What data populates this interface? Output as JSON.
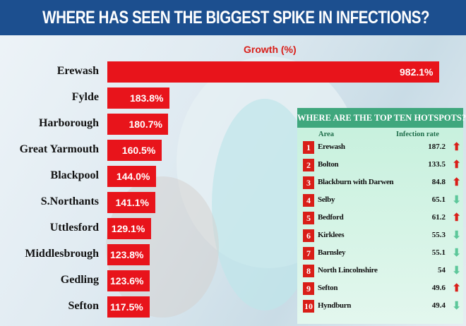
{
  "title": "WHERE HAS SEEN THE BIGGEST SPIKE IN INFECTIONS?",
  "chart_data": {
    "type": "bar",
    "orientation": "horizontal",
    "title": "Growth (%)",
    "categories": [
      "Erewash",
      "Fylde",
      "Harborough",
      "Great Yarmouth",
      "Blackpool",
      "S.Northants",
      "Uttlesford",
      "Middlesbrough",
      "Gedling",
      "Sefton"
    ],
    "values": [
      982.1,
      183.8,
      180.7,
      160.5,
      144.0,
      141.1,
      129.1,
      123.8,
      123.6,
      117.5
    ],
    "labels": [
      "982.1%",
      "183.8%",
      "180.7%",
      "160.5%",
      "144.0%",
      "141.1%",
      "129.1%",
      "123.8%",
      "123.6%",
      "117.5%"
    ],
    "bar_color": "#e8141b"
  },
  "hotspots": {
    "title": "WHERE ARE THE TOP TEN HOTSPOTS?",
    "col_area": "Area",
    "col_rate": "Infection rate",
    "up_color": "#d91e18",
    "down_color": "#5cc79a",
    "rows": [
      {
        "rank": "1",
        "area": "Erewash",
        "rate": "187.2",
        "trend": "up"
      },
      {
        "rank": "2",
        "area": "Bolton",
        "rate": "133.5",
        "trend": "up"
      },
      {
        "rank": "3",
        "area": "Blackburn with Darwen",
        "rate": "84.8",
        "trend": "up"
      },
      {
        "rank": "4",
        "area": "Selby",
        "rate": "65.1",
        "trend": "down"
      },
      {
        "rank": "5",
        "area": "Bedford",
        "rate": "61.2",
        "trend": "up"
      },
      {
        "rank": "6",
        "area": "Kirklees",
        "rate": "55.3",
        "trend": "down"
      },
      {
        "rank": "7",
        "area": "Barnsley",
        "rate": "55.1",
        "trend": "down"
      },
      {
        "rank": "8",
        "area": "North Lincolnshire",
        "rate": "54",
        "trend": "down"
      },
      {
        "rank": "9",
        "area": "Sefton",
        "rate": "49.6",
        "trend": "up"
      },
      {
        "rank": "10",
        "area": "Hyndburn",
        "rate": "49.4",
        "trend": "down"
      }
    ]
  }
}
